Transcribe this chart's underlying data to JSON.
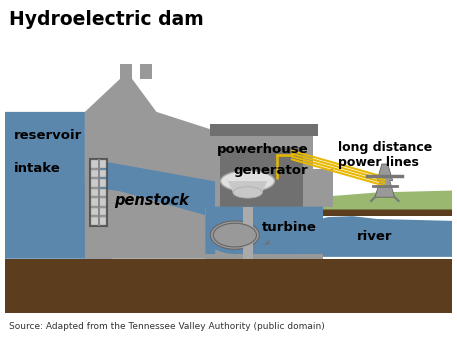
{
  "title": "Hydroelectric dam",
  "source_text": "Source: Adapted from the Tennessee Valley Authority (public domain)",
  "labels": {
    "reservoir": "reservoir",
    "intake": "intake",
    "penstock": "penstock",
    "powerhouse": "powerhouse",
    "generator": "generator",
    "turbine": "turbine",
    "river": "river",
    "power_lines": "long distance\npower lines"
  },
  "colors": {
    "water": "#5b87ad",
    "dam_gray": "#999999",
    "dam_mid": "#888888",
    "dam_dark": "#707070",
    "ground_brown": "#5c3d1e",
    "grass_green": "#9ab870",
    "power_line_yellow": "#e8b800",
    "generator_white": "#e0e0e0",
    "generator_silver": "#c8c8c8",
    "turbine_blue": "#6a9ab8",
    "bg": "#ffffff",
    "text_black": "#000000",
    "intake_grid": "#cccccc",
    "powerhouse_inner": "#707070"
  },
  "figsize": [
    4.57,
    3.4
  ],
  "dpi": 100
}
